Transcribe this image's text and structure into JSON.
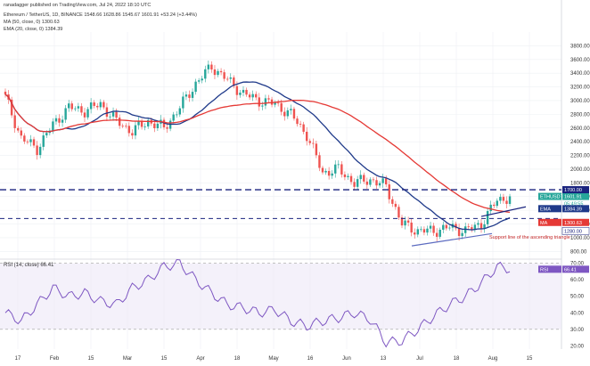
{
  "header": {
    "publisher": "ranadagger published on TradingView.com, Jul 24, 2022 18:10 UTC",
    "symbol_line": "Ethereum / TetherUS, 1D, BINANCE 1548.66 1628.86 1545.67 1601.91 +53.24 (+3.44%)",
    "ma_line": "MA (50, close, 0) 1300.63",
    "ema_line": "EMA (20, close, 0) 1384.39"
  },
  "colors": {
    "up": "#26a69a",
    "down": "#ef5350",
    "ema20": "#1f3a8a",
    "ma50": "#e53935",
    "rsi": "#7e57c2",
    "hline": "#1a237e",
    "support": "#5c6bc0",
    "ethusdt_tag": "#26a69a",
    "ema_tag": "#1f3a8a",
    "ma_tag": "#e53935"
  },
  "chart_data": [
    {
      "type": "candlestick",
      "pair": "ETHUSDT",
      "x_labels": [
        "17",
        "Feb",
        "15",
        "Mar",
        "15",
        "Apr",
        "18",
        "May",
        "16",
        "Jun",
        "13",
        "Jul",
        "18",
        "Aug",
        "15"
      ],
      "y_ticks": [
        800,
        1000,
        1200,
        1400,
        1600,
        1800,
        2000,
        2200,
        2400,
        2600,
        2800,
        3000,
        3200,
        3400,
        3600,
        3800
      ],
      "y_range": [
        700,
        4000
      ],
      "last_price": 1601.91,
      "countdown": "05:49:55",
      "ema20": 1384.39,
      "ma50": 1300.63,
      "resistance": 1700,
      "resistance_label": "1700.00",
      "support_level": 1280,
      "support_label": "1280.00",
      "ema_tag": "EMA",
      "ma_tag": "MA",
      "ethusdt_tag": "ETHUSDT",
      "annotation": "Support line of the ascending triangle",
      "closes_weekly": [
        3050,
        2450,
        2300,
        2650,
        2900,
        2850,
        2950,
        2700,
        2550,
        2700,
        2600,
        2900,
        3250,
        3500,
        3300,
        3100,
        3000,
        2950,
        2800,
        2500,
        1950,
        2000,
        1800,
        1850,
        1750,
        1200,
        1100,
        1100,
        1150,
        1100,
        1200,
        1550,
        1600
      ],
      "series": [
        {
          "name": "MA (50, close, 0)",
          "last": 1300.63
        },
        {
          "name": "EMA (20, close, 0)",
          "last": 1384.39
        }
      ]
    },
    {
      "type": "line",
      "name": "RSI (14, close)",
      "label": "RSI (14, close) 66.41",
      "last": 66.41,
      "tag": "RSI",
      "y_ticks": [
        20,
        30,
        40,
        50,
        60,
        70
      ],
      "y_range": [
        18,
        72
      ],
      "bands": [
        30,
        70
      ],
      "values_weekly": [
        40,
        35,
        45,
        55,
        50,
        52,
        47,
        45,
        55,
        60,
        68,
        70,
        60,
        52,
        45,
        43,
        40,
        42,
        35,
        32,
        35,
        37,
        40,
        36,
        22,
        23,
        30,
        38,
        45,
        50,
        58,
        68,
        66.4
      ]
    }
  ]
}
